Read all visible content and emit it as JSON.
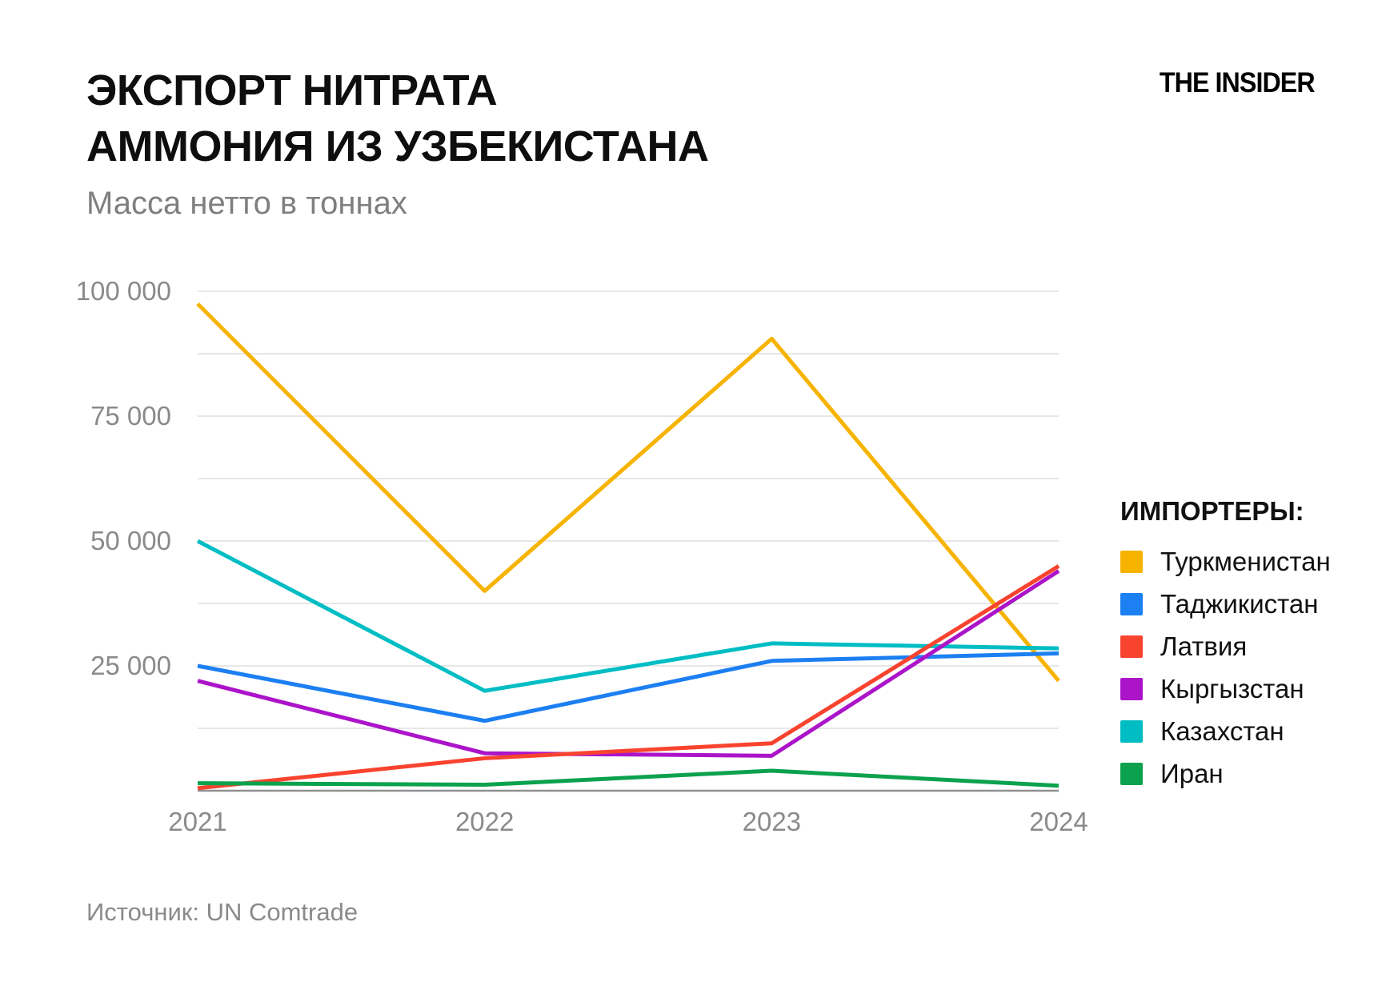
{
  "header": {
    "title_line1": "ЭКСПОРТ НИТРАТА",
    "title_line2": "АММОНИЯ ИЗ УЗБЕКИСТАНА",
    "subtitle": "Масса нетто в тоннах",
    "brand": "THE INSIDER"
  },
  "legend": {
    "title": "ИМПОРТЕРЫ:"
  },
  "source": {
    "label": "Источник: UN Comtrade"
  },
  "chart_data": {
    "type": "line",
    "title": "Экспорт нитрата аммония из Узбекистана",
    "ylabel": "Масса нетто в тоннах",
    "xlabel": "",
    "x": [
      "2021",
      "2022",
      "2023",
      "2024"
    ],
    "series": [
      {
        "id": "turkmenistan",
        "name": "Туркменистан",
        "color": "#F6B300",
        "values": [
          97500,
          40000,
          90500,
          22000
        ]
      },
      {
        "id": "tajikistan",
        "name": "Таджикистан",
        "color": "#1C7FF2",
        "values": [
          25000,
          14000,
          26000,
          27500
        ]
      },
      {
        "id": "latvia",
        "name": "Латвия",
        "color": "#F8432F",
        "values": [
          500,
          6500,
          9500,
          45000
        ]
      },
      {
        "id": "kyrgyzstan",
        "name": "Кыргызстан",
        "color": "#AC14C9",
        "values": [
          22000,
          7500,
          7000,
          44000
        ]
      },
      {
        "id": "kazakhstan",
        "name": "Казахстан",
        "color": "#00BDC4",
        "values": [
          50000,
          20000,
          29500,
          28500
        ]
      },
      {
        "id": "iran",
        "name": "Иран",
        "color": "#0CA24D",
        "values": [
          1500,
          1200,
          4000,
          1000
        ]
      }
    ],
    "ylim": [
      0,
      100000
    ],
    "grid_step": 12500,
    "yticks": [
      {
        "value": 100000,
        "label": "100 000"
      },
      {
        "value": 75000,
        "label": "75 000"
      },
      {
        "value": 50000,
        "label": "50 000"
      },
      {
        "value": 25000,
        "label": "25 000"
      }
    ],
    "grid": "horizontal",
    "legend_position": "right",
    "colors": {
      "grid_line": "#e7e7e7",
      "axis_line": "#909090",
      "tick_text": "#8a8a8a"
    }
  }
}
